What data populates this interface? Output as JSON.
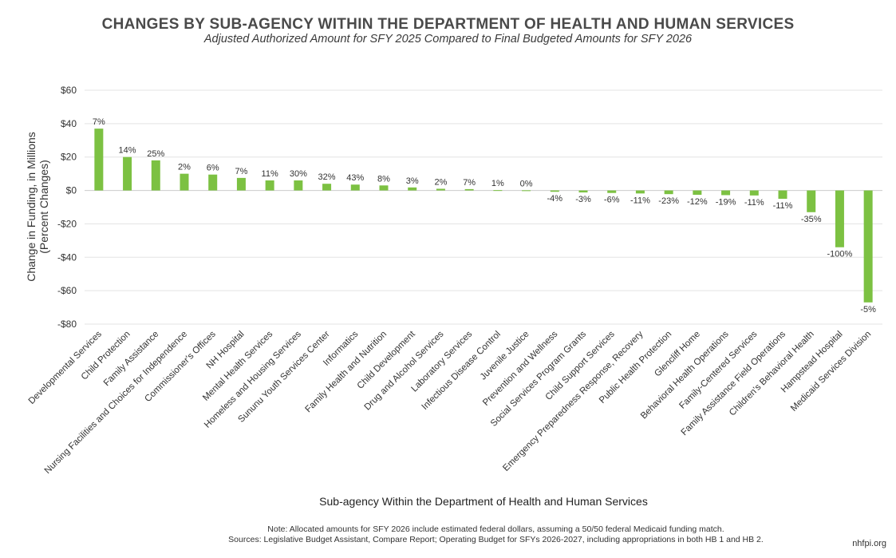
{
  "header": {
    "title": "CHANGES BY SUB-AGENCY WITHIN THE DEPARTMENT OF HEALTH AND HUMAN SERVICES",
    "subtitle": "Adjusted Authorized Amount for SFY 2025 Compared to Final Budgeted Amounts for SFY 2026"
  },
  "footer": {
    "note": "Note: Allocated amounts for SFY 2026 include estimated federal dollars, assuming a 50/50 federal Medicaid funding match.",
    "sources": "Sources: Legislative Budget Assistant, Compare Report; Operating Budget for SFYs 2026-2027, including appropriations in both HB 1 and HB 2.",
    "site": "nhfpi.org"
  },
  "colors": {
    "bar": "#7cc142",
    "grid": "#e3e3e3",
    "axis": "#cccccc",
    "text": "#333333"
  },
  "chart_data": {
    "type": "bar",
    "xlabel": "Sub-agency Within the Department of Health and Human Services",
    "ylabel": "Change in Funding, in Millions",
    "ylabel2": "(Percent Changes)",
    "ylim": [
      -80,
      60
    ],
    "yticks": [
      60,
      40,
      20,
      0,
      -20,
      -40,
      -60,
      -80
    ],
    "ytick_labels": [
      "$60",
      "$40",
      "$20",
      "$0",
      "-$20",
      "-$40",
      "-$60",
      "-$80"
    ],
    "grid": true,
    "categories": [
      "Developmental Services",
      "Child Protection",
      "Family Assistance",
      "Nursing Facilities and Choices for Independence",
      "Commissioner's Offices",
      "NH Hospital",
      "Mental Health Services",
      "Homeless and Housing Services",
      "Sununu Youth Services Center",
      "Informatics",
      "Family Health and Nutrition",
      "Child Development",
      "Drug and Alcohol Services",
      "Laboratory Services",
      "Infectious Disease Control",
      "Juvenile Justice",
      "Prevention and Wellness",
      "Social Services Program Grants",
      "Child Support Services",
      "Emergency Preparedness Response, Recovery",
      "Public Health Protection",
      "Glencliff Home",
      "Behavioral Health Operations",
      "Family-Centered Services",
      "Family Assistance Field Operations",
      "Children's Behavioral Health",
      "Hampstead Hospital",
      "Medicaid Services Division"
    ],
    "values": [
      37,
      20,
      18,
      10,
      9.5,
      7.5,
      6,
      6,
      4,
      3.5,
      3,
      1.8,
      1,
      0.8,
      0.2,
      0.1,
      -0.8,
      -1.2,
      -1.5,
      -1.8,
      -2.2,
      -2.6,
      -2.8,
      -3,
      -5,
      -13,
      -34,
      -67
    ],
    "data_labels": [
      "7%",
      "14%",
      "25%",
      "2%",
      "6%",
      "7%",
      "11%",
      "30%",
      "32%",
      "43%",
      "8%",
      "3%",
      "2%",
      "7%",
      "1%",
      "0%",
      "-4%",
      "-3%",
      "-6%",
      "-11%",
      "-23%",
      "-12%",
      "-19%",
      "-11%",
      "-11%",
      "-35%",
      "-100%",
      "-5%"
    ]
  }
}
